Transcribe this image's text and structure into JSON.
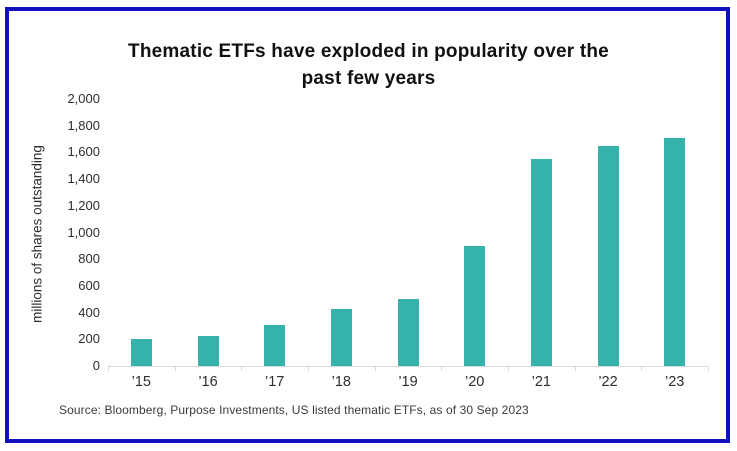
{
  "card": {
    "title_lines": [
      "Thematic ETFs have exploded in popularity over the",
      "past few years"
    ],
    "source": "Source: Bloomberg, Purpose Investments, US listed thematic ETFs, as of 30 Sep 2023"
  },
  "chart_data": {
    "type": "bar",
    "title": "Thematic ETFs have exploded in popularity over the past few years",
    "categories": [
      "’15",
      "’16",
      "’17",
      "’18",
      "’19",
      "’20",
      "’21",
      "’22",
      "’23"
    ],
    "values": [
      200,
      225,
      305,
      430,
      500,
      900,
      1550,
      1650,
      1710
    ],
    "xlabel": "",
    "ylabel": "millions of shares outstanding",
    "ylim": [
      0,
      2000
    ],
    "ytick_step": 200,
    "ytick_labels": [
      "0",
      "200",
      "400",
      "600",
      "800",
      "1,000",
      "1,200",
      "1,400",
      "1,600",
      "1,800",
      "2,000"
    ],
    "grid": false,
    "legend": null,
    "source": "Source: Bloomberg, Purpose Investments, US listed thematic ETFs, as of 30 Sep 2023"
  },
  "colors": {
    "bar": "#35B2A9",
    "border": "#1111C0",
    "title": "#111111",
    "axis_text": "#2E2E2E",
    "axis_line": "#D9D9D9",
    "source_text": "#3A3A3A",
    "background": "#FFFFFF"
  }
}
